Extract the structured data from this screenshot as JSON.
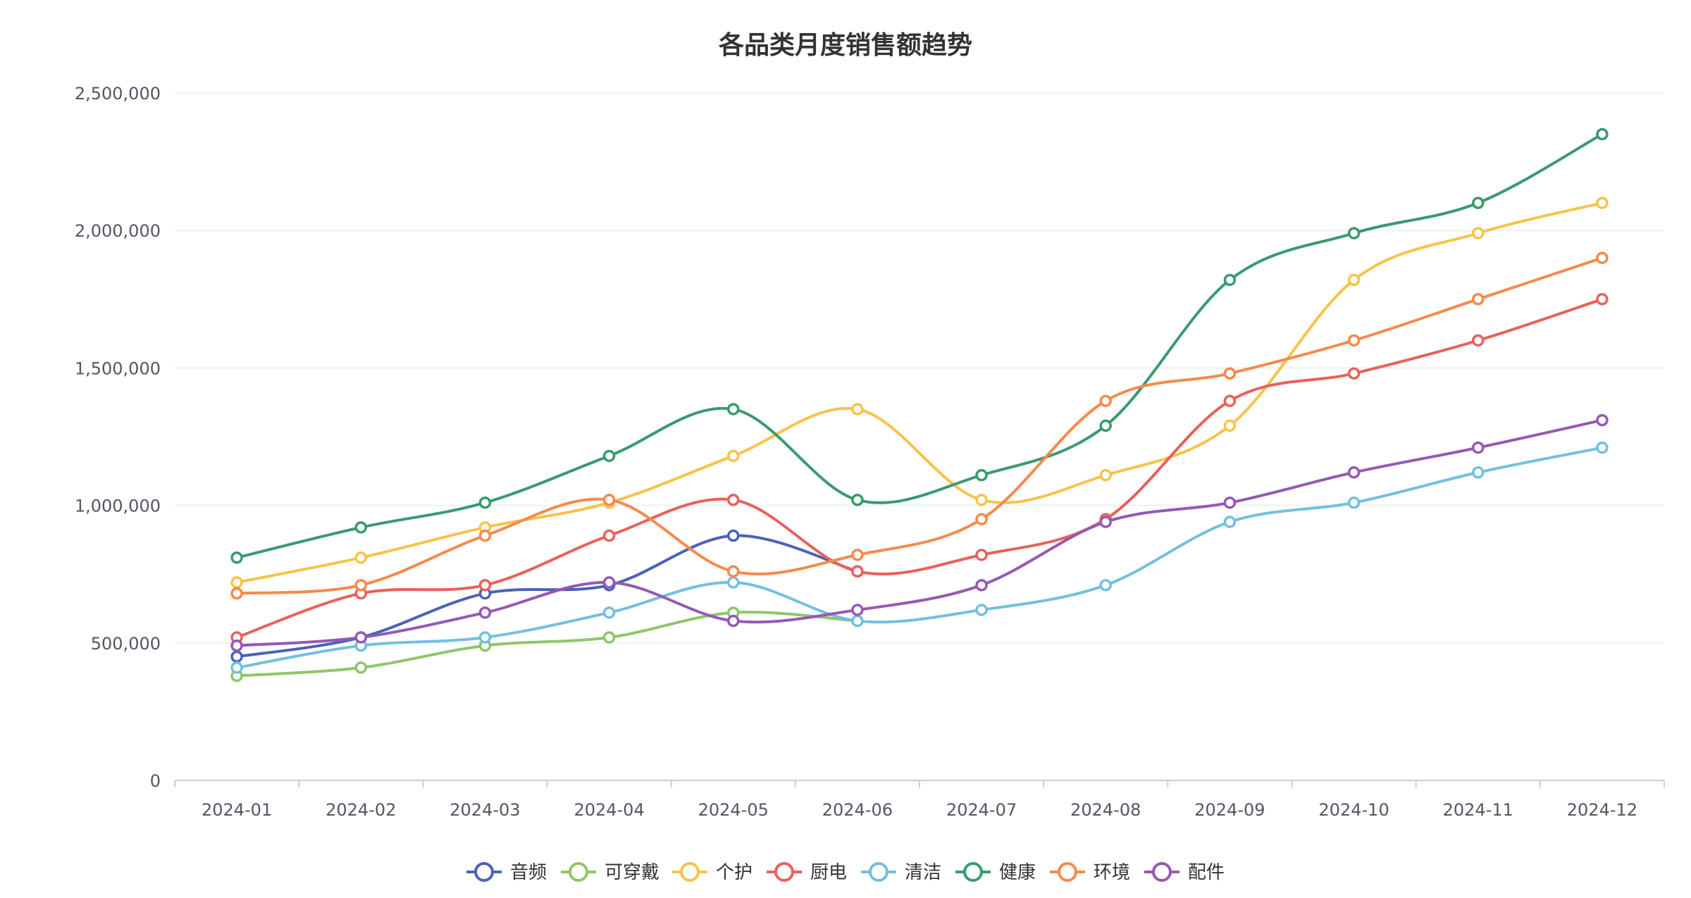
{
  "chart_data": {
    "type": "line",
    "smooth": true,
    "title": "各品类月度销售额趋势",
    "xlabel": "",
    "ylabel": "",
    "ylim": [
      0,
      2500000
    ],
    "yticks": [
      0,
      500000,
      1000000,
      1500000,
      2000000,
      2500000
    ],
    "ytick_labels": [
      "0",
      "500,000",
      "1,000,000",
      "1,500,000",
      "2,000,000",
      "2,500,000"
    ],
    "grid": true,
    "legend_position": "bottom",
    "categories": [
      "2024-01",
      "2024-02",
      "2024-03",
      "2024-04",
      "2024-05",
      "2024-06",
      "2024-07",
      "2024-08",
      "2024-09",
      "2024-10",
      "2024-11",
      "2024-12"
    ],
    "series": [
      {
        "name": "音频",
        "color": "#4a62b8",
        "values": [
          450000,
          520000,
          680000,
          710000,
          890000,
          760000,
          null,
          null,
          null,
          null,
          null,
          null
        ]
      },
      {
        "name": "可穿戴",
        "color": "#8fc66a",
        "values": [
          380000,
          410000,
          490000,
          520000,
          610000,
          580000,
          null,
          null,
          null,
          null,
          null,
          null
        ]
      },
      {
        "name": "个护",
        "color": "#f7c34a",
        "values": [
          720000,
          810000,
          920000,
          1010000,
          1180000,
          1350000,
          1020000,
          1110000,
          1290000,
          1820000,
          1990000,
          2100000
        ]
      },
      {
        "name": "厨电",
        "color": "#e8615a",
        "values": [
          520000,
          680000,
          710000,
          890000,
          1020000,
          760000,
          820000,
          950000,
          1380000,
          1480000,
          1600000,
          1750000
        ]
      },
      {
        "name": "清洁",
        "color": "#73c0de",
        "values": [
          410000,
          490000,
          520000,
          610000,
          720000,
          580000,
          620000,
          710000,
          940000,
          1010000,
          1120000,
          1210000
        ]
      },
      {
        "name": "健康",
        "color": "#3a9a6e",
        "values": [
          810000,
          920000,
          1010000,
          1180000,
          1350000,
          1020000,
          1110000,
          1290000,
          1820000,
          1990000,
          2100000,
          2350000
        ]
      },
      {
        "name": "环境",
        "color": "#f58a4c",
        "values": [
          680000,
          710000,
          890000,
          1020000,
          760000,
          820000,
          950000,
          1380000,
          1480000,
          1600000,
          1750000,
          1900000
        ]
      },
      {
        "name": "配件",
        "color": "#9559b3",
        "values": [
          490000,
          520000,
          610000,
          720000,
          580000,
          620000,
          710000,
          940000,
          1010000,
          1120000,
          1210000,
          1310000
        ]
      }
    ]
  }
}
